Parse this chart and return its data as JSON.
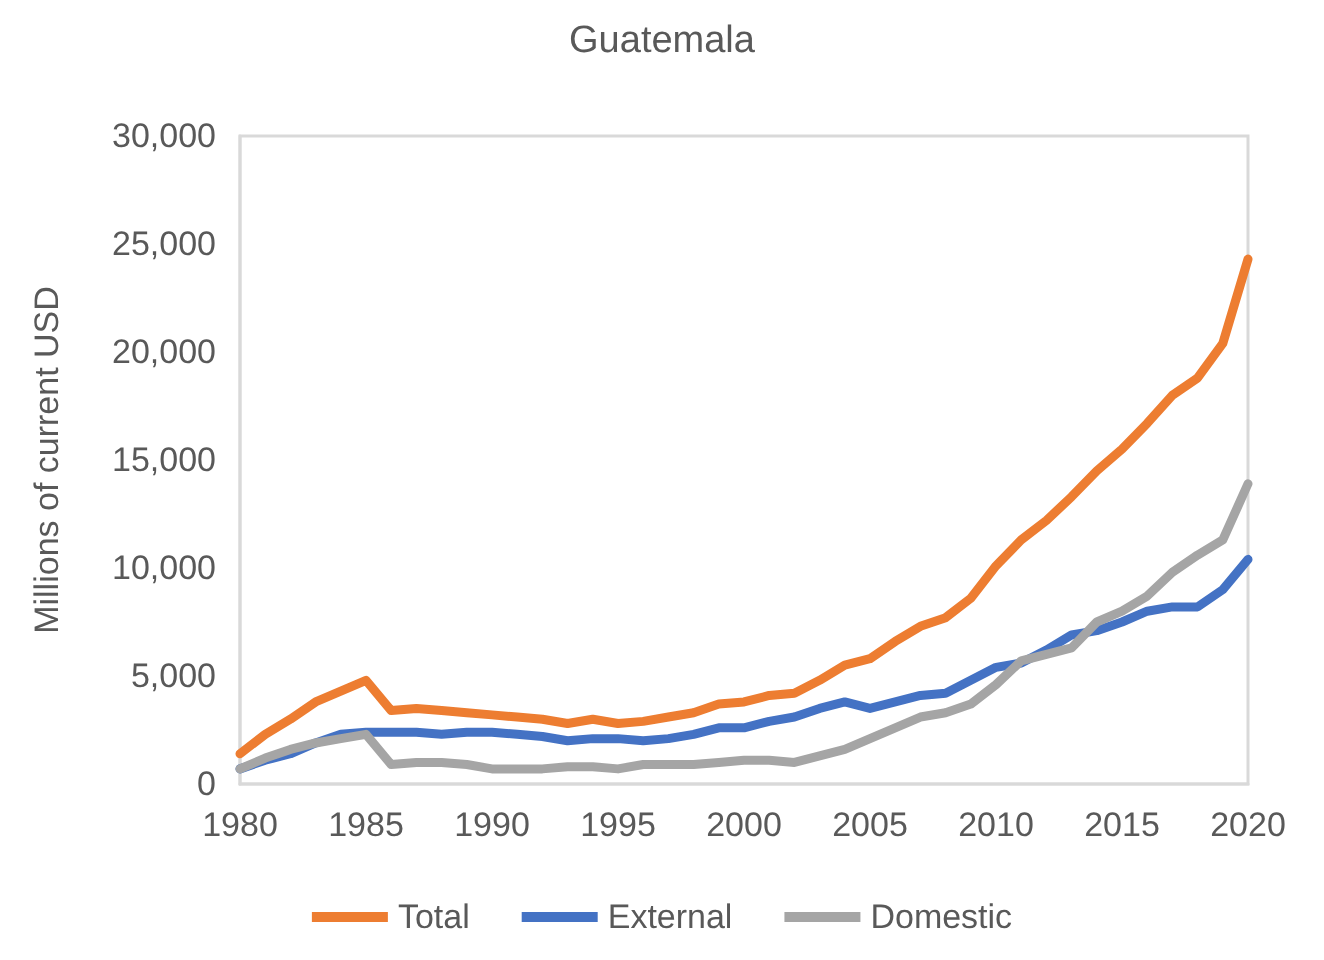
{
  "chart_data": {
    "type": "line",
    "title": "Guatemala",
    "ylabel": "Millions of current USD",
    "x": [
      1980,
      1981,
      1982,
      1983,
      1984,
      1985,
      1986,
      1987,
      1988,
      1989,
      1990,
      1991,
      1992,
      1993,
      1994,
      1995,
      1996,
      1997,
      1998,
      1999,
      2000,
      2001,
      2002,
      2003,
      2004,
      2005,
      2006,
      2007,
      2008,
      2009,
      2010,
      2011,
      2012,
      2013,
      2014,
      2015,
      2016,
      2017,
      2018,
      2019,
      2020
    ],
    "series": [
      {
        "name": "Total",
        "color": "#ed7d31",
        "values": [
          1400,
          2300,
          3000,
          3800,
          4300,
          4800,
          3400,
          3500,
          3400,
          3300,
          3200,
          3100,
          3000,
          2800,
          3000,
          2800,
          2900,
          3100,
          3300,
          3700,
          3800,
          4100,
          4200,
          4800,
          5500,
          5800,
          6600,
          7300,
          7700,
          8600,
          10100,
          11300,
          12200,
          13300,
          14500,
          15500,
          16700,
          18000,
          18800,
          20400,
          24300
        ]
      },
      {
        "name": "External",
        "color": "#4472c4",
        "values": [
          700,
          1100,
          1400,
          1900,
          2300,
          2400,
          2400,
          2400,
          2300,
          2400,
          2400,
          2300,
          2200,
          2000,
          2100,
          2100,
          2000,
          2100,
          2300,
          2600,
          2600,
          2900,
          3100,
          3500,
          3800,
          3500,
          3800,
          4100,
          4200,
          4800,
          5400,
          5600,
          6200,
          6900,
          7100,
          7500,
          8000,
          8200,
          8200,
          9000,
          10400
        ]
      },
      {
        "name": "Domestic",
        "color": "#a5a5a5",
        "values": [
          700,
          1200,
          1600,
          1900,
          2100,
          2300,
          900,
          1000,
          1000,
          900,
          700,
          700,
          700,
          800,
          800,
          700,
          900,
          900,
          900,
          1000,
          1100,
          1100,
          1000,
          1300,
          1600,
          2100,
          2600,
          3100,
          3300,
          3700,
          4600,
          5700,
          6000,
          6300,
          7500,
          8000,
          8700,
          9800,
          10600,
          11300,
          13900
        ]
      }
    ],
    "xlim": [
      1980,
      2020
    ],
    "xticks": [
      1980,
      1985,
      1990,
      1995,
      2000,
      2005,
      2010,
      2015,
      2020
    ],
    "ylim": [
      0,
      30000
    ],
    "yticks": [
      0,
      {
        "value": 5000,
        "label": "5,000"
      },
      {
        "value": 10000,
        "label": "10,000"
      },
      {
        "value": 15000,
        "label": "15,000"
      },
      {
        "value": 20000,
        "label": "20,000"
      },
      {
        "value": 25000,
        "label": "25,000"
      },
      {
        "value": 30000,
        "label": "30,000"
      }
    ],
    "grid": false,
    "legend": "bottom",
    "marker": "none",
    "line_style": "solid"
  }
}
